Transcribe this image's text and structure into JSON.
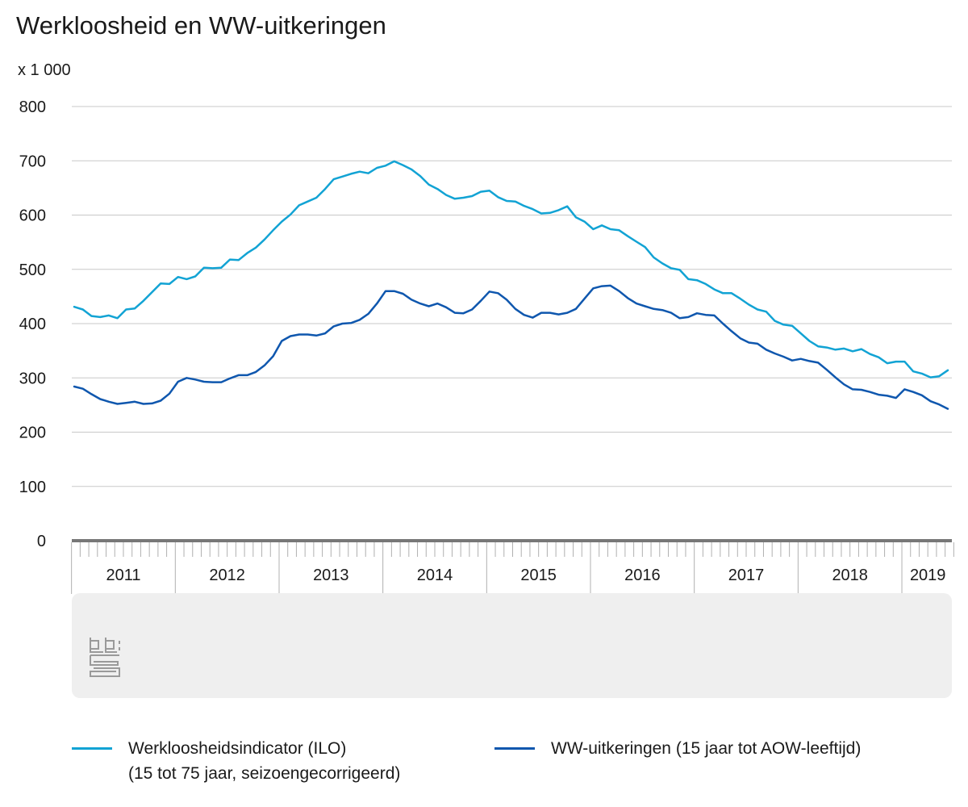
{
  "title": "Werkloosheid en WW-uitkeringen",
  "unit": "x 1 000",
  "chart_data": {
    "type": "line",
    "ylim": [
      0,
      800
    ],
    "yticks": [
      "0",
      "100",
      "200",
      "300",
      "400",
      "500",
      "600",
      "700",
      "800"
    ],
    "grid": true,
    "x_start": "2011-01",
    "x_end": "2019-06",
    "x_tick_labels": [
      "2011",
      "2012",
      "2013",
      "2014",
      "2015",
      "2016",
      "2017",
      "2018",
      "2019"
    ],
    "series": [
      {
        "name": "Werkloosheidsindicator (ILO)",
        "name_line2": "(15 tot 75 jaar, seizoengecorrigeerd)",
        "color": "#12a3d4",
        "values": [
          431,
          426,
          414,
          412,
          415,
          410,
          426,
          428,
          442,
          458,
          474,
          473,
          486,
          482,
          487,
          503,
          502,
          503,
          518,
          517,
          530,
          540,
          555,
          572,
          588,
          601,
          618,
          625,
          632,
          648,
          666,
          671,
          676,
          680,
          677,
          687,
          691,
          699,
          692,
          684,
          672,
          656,
          648,
          637,
          630,
          632,
          635,
          643,
          645,
          633,
          626,
          625,
          617,
          611,
          603,
          604,
          609,
          616,
          596,
          588,
          574,
          581,
          574,
          572,
          561,
          551,
          541,
          522,
          511,
          502,
          499,
          482,
          480,
          473,
          463,
          456,
          456,
          446,
          435,
          426,
          422,
          405,
          398,
          396,
          382,
          368,
          358,
          356,
          352,
          354,
          349,
          353,
          344,
          338,
          327,
          330,
          330,
          312,
          308,
          301,
          303,
          314
        ]
      },
      {
        "name": "WW-uitkeringen (15 jaar tot AOW-leeftijd)",
        "color": "#0f57ae",
        "values": [
          284,
          280,
          270,
          261,
          256,
          252,
          254,
          256,
          252,
          253,
          258,
          271,
          293,
          300,
          297,
          293,
          292,
          292,
          299,
          305,
          305,
          311,
          323,
          340,
          368,
          377,
          380,
          380,
          378,
          382,
          395,
          400,
          401,
          407,
          418,
          437,
          460,
          460,
          455,
          444,
          437,
          432,
          437,
          430,
          420,
          419,
          426,
          442,
          459,
          456,
          444,
          427,
          416,
          411,
          420,
          420,
          417,
          420,
          427,
          446,
          465,
          469,
          470,
          460,
          447,
          437,
          432,
          427,
          425,
          420,
          410,
          412,
          419,
          416,
          415,
          400,
          386,
          373,
          365,
          363,
          352,
          345,
          339,
          332,
          335,
          331,
          328,
          315,
          301,
          288,
          279,
          278,
          274,
          269,
          267,
          263,
          279,
          274,
          268,
          257,
          251,
          243
        ]
      }
    ]
  }
}
